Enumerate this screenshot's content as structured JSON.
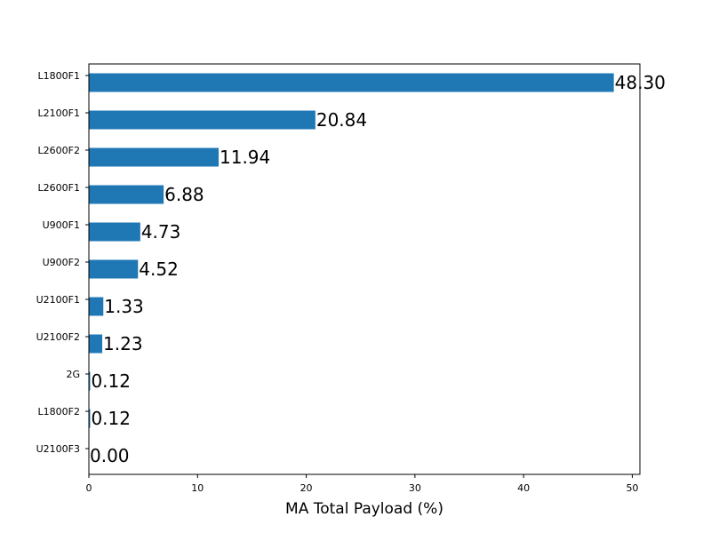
{
  "chart_data": {
    "type": "bar",
    "orientation": "horizontal",
    "categories": [
      "L1800F1",
      "L2100F1",
      "L2600F2",
      "L2600F1",
      "U900F1",
      "U900F2",
      "U2100F1",
      "U2100F2",
      "2G",
      "L1800F2",
      "U2100F3"
    ],
    "values": [
      48.3,
      20.84,
      11.94,
      6.88,
      4.73,
      4.52,
      1.33,
      1.23,
      0.12,
      0.12,
      0.0
    ],
    "data_labels": [
      "48.30",
      "20.84",
      "11.94",
      "6.88",
      "4.73",
      "4.52",
      "1.33",
      "1.23",
      "0.12",
      "0.12",
      "0.00"
    ],
    "title": "",
    "xlabel": "MA Total Payload (%)",
    "ylabel": "",
    "xlim": [
      0,
      50.7
    ],
    "xticks": [
      0,
      10,
      20,
      30,
      40,
      50
    ],
    "grid": false,
    "legend": "none",
    "bar_color": "#1f77b4"
  }
}
